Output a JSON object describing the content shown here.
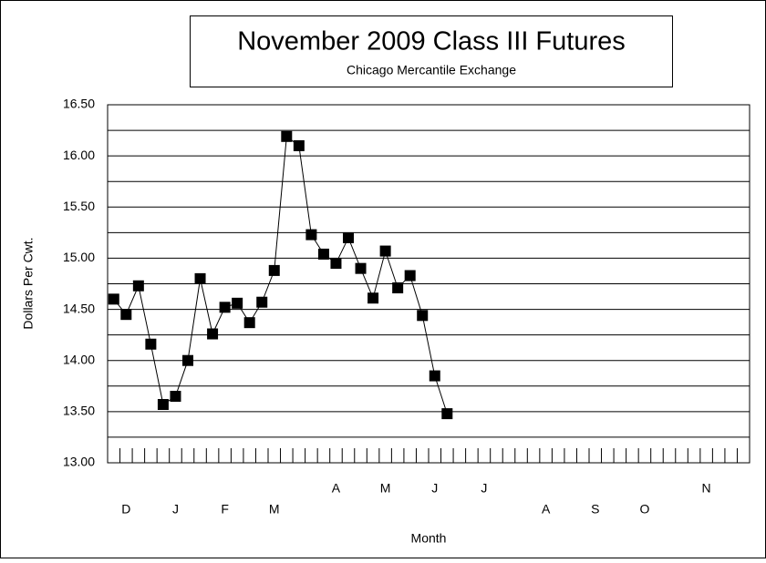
{
  "chart_data": {
    "type": "line",
    "title": "November 2009 Class III Futures",
    "subtitle": "Chicago Mercantile Exchange",
    "ylabel": "Dollars Per Cwt.",
    "xlabel": "Month",
    "x": [
      0,
      1,
      2,
      3,
      4,
      5,
      6,
      7,
      8,
      9,
      10,
      11,
      12,
      13,
      14,
      15,
      16,
      17,
      18,
      19,
      20,
      21,
      22,
      23,
      24,
      25,
      26,
      27
    ],
    "series": [
      {
        "name": "November 2009 Class III",
        "color": "#000000",
        "values": [
          14.6,
          14.45,
          14.73,
          14.16,
          13.57,
          13.65,
          14.0,
          14.8,
          14.26,
          14.52,
          14.56,
          14.37,
          14.57,
          14.88,
          16.19,
          16.1,
          15.23,
          15.04,
          14.95,
          15.2,
          14.9,
          14.61,
          15.07,
          14.71,
          14.83,
          14.44,
          13.85,
          13.48
        ]
      }
    ],
    "xlim": [
      -0.5,
      51.5
    ],
    "xtick_step": 1,
    "month_labels": [
      {
        "label": "D",
        "x": 1
      },
      {
        "label": "J",
        "x": 5
      },
      {
        "label": "F",
        "x": 9
      },
      {
        "label": "M",
        "x": 13
      },
      {
        "label": "A",
        "x": 18
      },
      {
        "label": "M",
        "x": 22
      },
      {
        "label": "J",
        "x": 26
      },
      {
        "label": "J",
        "x": 30
      },
      {
        "label": "A",
        "x": 35
      },
      {
        "label": "S",
        "x": 39
      },
      {
        "label": "O",
        "x": 43
      },
      {
        "label": "N",
        "x": 48
      }
    ],
    "ylim": [
      13.0,
      16.5
    ],
    "yticks": [
      {
        "value": 13.0,
        "label": "13.00"
      },
      {
        "value": 13.5,
        "label": "13.50"
      },
      {
        "value": 14.0,
        "label": "14.00"
      },
      {
        "value": 14.5,
        "label": "14.50"
      },
      {
        "value": 15.0,
        "label": "15.00"
      },
      {
        "value": 15.5,
        "label": "15.50"
      },
      {
        "value": 16.0,
        "label": "16.00"
      },
      {
        "value": 16.5,
        "label": "16.50"
      }
    ],
    "minor_yticks": [
      13.25,
      13.75,
      14.25,
      14.75,
      15.25,
      15.75,
      16.25
    ],
    "grid": true
  }
}
